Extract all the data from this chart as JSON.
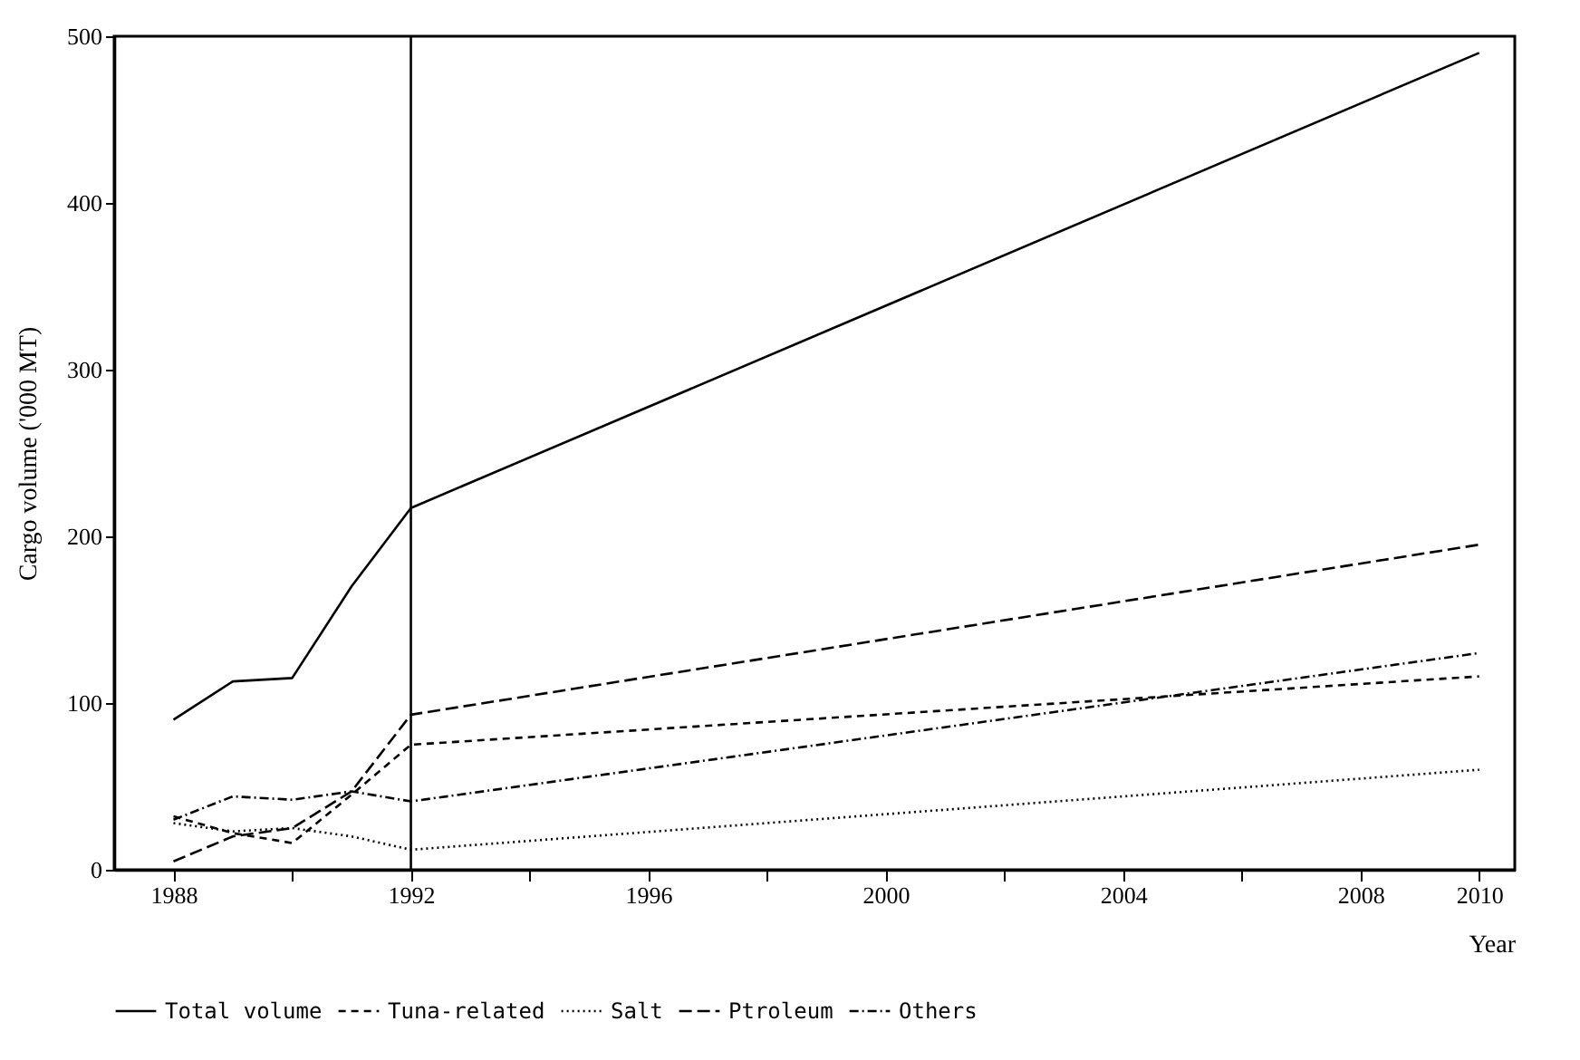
{
  "chart_data": {
    "type": "line",
    "xlabel": "Year",
    "ylabel": "Cargo volume ('000 MT)",
    "x": [
      1988,
      1989,
      1990,
      1991,
      1992,
      2010
    ],
    "series": [
      {
        "name": "Total volume",
        "color": "#000000",
        "line_style": "solid",
        "values": [
          90,
          113,
          115,
          170,
          217,
          490
        ]
      },
      {
        "name": "Tuna-related",
        "color": "#000000",
        "line_style": "dashed",
        "values": [
          32,
          22,
          16,
          45,
          75,
          116
        ]
      },
      {
        "name": "Salt",
        "color": "#000000",
        "line_style": "dotted",
        "values": [
          28,
          23,
          25,
          20,
          12,
          60
        ]
      },
      {
        "name": "Ptroleum",
        "color": "#000000",
        "line_style": "longdash",
        "values": [
          5,
          20,
          25,
          47,
          93,
          195
        ]
      },
      {
        "name": "Others",
        "color": "#000000",
        "line_style": "dashdot",
        "values": [
          30,
          44,
          42,
          47,
          41,
          130
        ]
      }
    ],
    "xlim": [
      1987,
      2010.6
    ],
    "xticks": [
      1988,
      {
        "value": 1990,
        "label": null
      },
      1992,
      {
        "value": 1994,
        "label": null
      },
      1996,
      {
        "value": 1998,
        "label": null
      },
      2000,
      {
        "value": 2002,
        "label": null
      },
      2004,
      {
        "value": 2006,
        "label": null
      },
      2008,
      2010
    ],
    "ylim": [
      0,
      500
    ],
    "yticks": [
      0,
      100,
      200,
      300,
      400,
      500
    ],
    "ref_lines": [
      {
        "axis": "x",
        "value": 1992,
        "color": "#000000"
      }
    ],
    "grid": false,
    "legend": "bottom",
    "marker": "none"
  }
}
